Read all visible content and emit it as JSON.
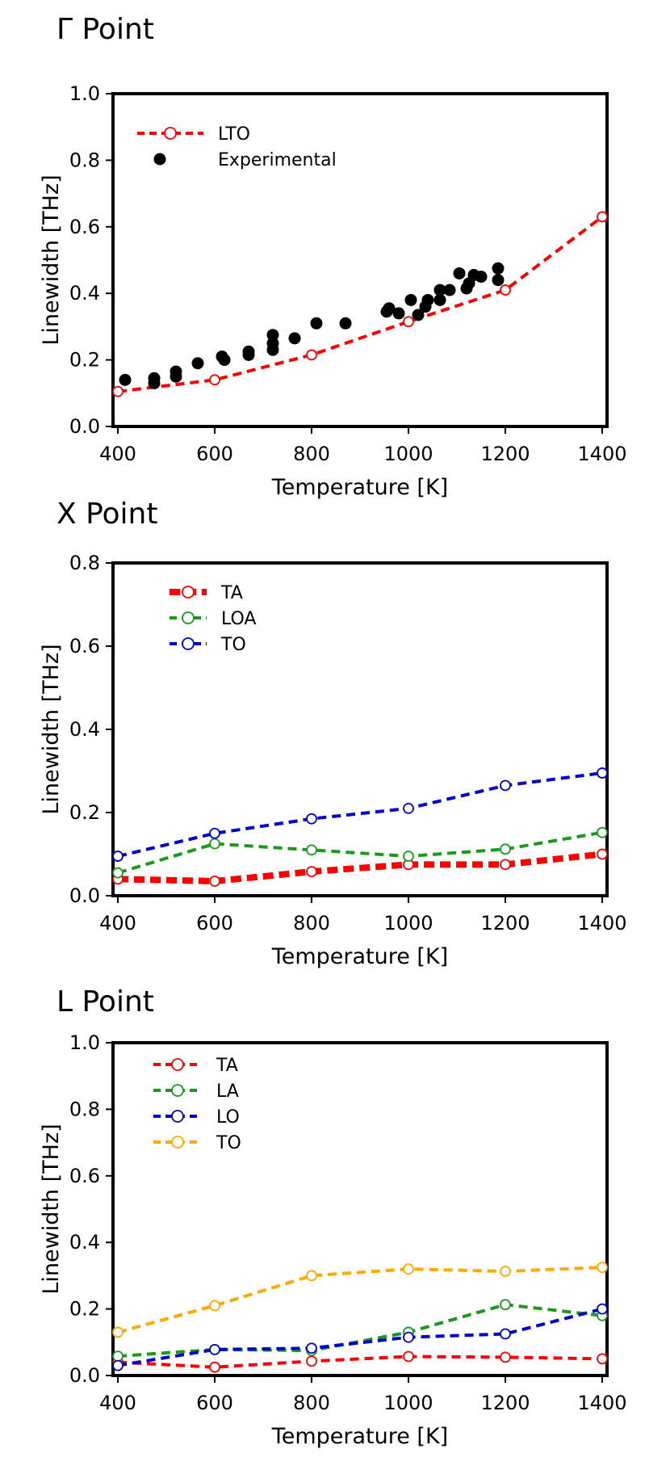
{
  "chart_data": [
    {
      "type": "line",
      "title": "Γ Point",
      "xlabel": "Temperature [K]",
      "ylabel": "Linewidth [THz]",
      "xlim": [
        390,
        1410
      ],
      "ylim": [
        0,
        1.0
      ],
      "xticks": [
        400,
        600,
        800,
        1000,
        1200,
        1400
      ],
      "yticks": [
        0.0,
        0.2,
        0.4,
        0.6,
        0.8,
        1.0
      ],
      "legend_position": "top-left",
      "series": [
        {
          "name": "LTO",
          "kind": "dashed-line-open-circle",
          "color": "#ff0000",
          "x": [
            400,
            600,
            800,
            1000,
            1200,
            1400
          ],
          "y": [
            0.105,
            0.14,
            0.215,
            0.315,
            0.41,
            0.63
          ]
        },
        {
          "name": "Experimental",
          "kind": "filled-circle",
          "color": "#000000",
          "x": [
            415,
            475,
            475,
            520,
            520,
            565,
            615,
            620,
            670,
            670,
            720,
            720,
            720,
            765,
            810,
            870,
            955,
            960,
            980,
            1005,
            1020,
            1035,
            1040,
            1065,
            1065,
            1085,
            1105,
            1120,
            1125,
            1135,
            1150,
            1185,
            1185
          ],
          "y": [
            0.14,
            0.13,
            0.145,
            0.15,
            0.165,
            0.19,
            0.21,
            0.2,
            0.215,
            0.225,
            0.23,
            0.25,
            0.275,
            0.265,
            0.31,
            0.31,
            0.345,
            0.355,
            0.34,
            0.38,
            0.335,
            0.36,
            0.38,
            0.38,
            0.41,
            0.41,
            0.46,
            0.415,
            0.43,
            0.455,
            0.45,
            0.44,
            0.475
          ]
        }
      ]
    },
    {
      "type": "line",
      "title": "X Point",
      "xlabel": "Temperature [K]",
      "ylabel": "Linewidth [THz]",
      "xlim": [
        390,
        1410
      ],
      "ylim": [
        0,
        0.8
      ],
      "xticks": [
        400,
        600,
        800,
        1000,
        1200,
        1400
      ],
      "yticks": [
        0.0,
        0.2,
        0.4,
        0.6,
        0.8
      ],
      "legend_position": "top-left",
      "series": [
        {
          "name": "TA",
          "kind": "dashed-line-open-circle",
          "thick": true,
          "color": "#ff0000",
          "x": [
            400,
            600,
            800,
            1000,
            1200,
            1400
          ],
          "y": [
            0.04,
            0.035,
            0.058,
            0.075,
            0.075,
            0.1
          ]
        },
        {
          "name": "LOA",
          "kind": "dashed-line-open-circle",
          "color": "#1a9a1a",
          "x": [
            400,
            600,
            800,
            1000,
            1200,
            1400
          ],
          "y": [
            0.055,
            0.125,
            0.11,
            0.095,
            0.112,
            0.152
          ]
        },
        {
          "name": "TO",
          "kind": "dashed-line-open-circle",
          "color": "#0000cc",
          "x": [
            400,
            600,
            800,
            1000,
            1200,
            1400
          ],
          "y": [
            0.095,
            0.15,
            0.185,
            0.21,
            0.265,
            0.295
          ]
        }
      ]
    },
    {
      "type": "line",
      "title": "L Point",
      "xlabel": "Temperature [K]",
      "ylabel": "Linewidth [THz]",
      "xlim": [
        390,
        1410
      ],
      "ylim": [
        0,
        1.0
      ],
      "xticks": [
        400,
        600,
        800,
        1000,
        1200,
        1400
      ],
      "yticks": [
        0.0,
        0.2,
        0.4,
        0.6,
        0.8,
        1.0
      ],
      "legend_position": "top-left",
      "series": [
        {
          "name": "TA",
          "kind": "dashed-line-open-circle",
          "color": "#ff0000",
          "x": [
            400,
            600,
            800,
            1000,
            1200,
            1400
          ],
          "y": [
            0.04,
            0.025,
            0.043,
            0.057,
            0.055,
            0.05
          ]
        },
        {
          "name": "LA",
          "kind": "dashed-line-open-circle",
          "color": "#1a9a1a",
          "x": [
            400,
            600,
            800,
            1000,
            1200,
            1400
          ],
          "y": [
            0.058,
            0.078,
            0.075,
            0.13,
            0.213,
            0.18
          ]
        },
        {
          "name": "LO",
          "kind": "dashed-line-open-circle",
          "color": "#0000cc",
          "x": [
            400,
            600,
            800,
            1000,
            1200,
            1400
          ],
          "y": [
            0.03,
            0.078,
            0.082,
            0.115,
            0.125,
            0.2
          ]
        },
        {
          "name": "TO",
          "kind": "dashed-line-open-circle",
          "color": "#ffaa00",
          "x": [
            400,
            600,
            800,
            1000,
            1200,
            1400
          ],
          "y": [
            0.13,
            0.21,
            0.3,
            0.32,
            0.313,
            0.325
          ]
        }
      ]
    }
  ]
}
